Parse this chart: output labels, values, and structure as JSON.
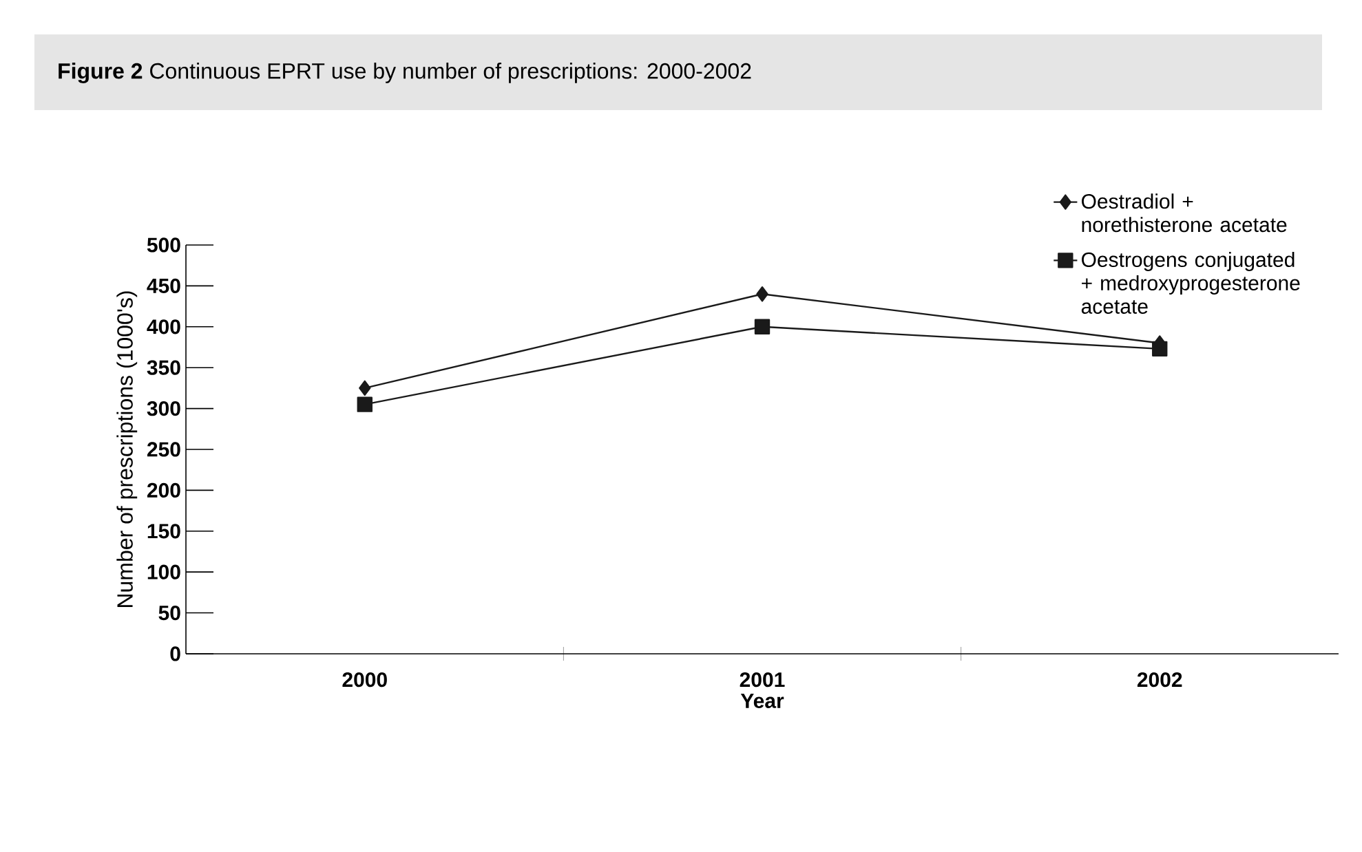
{
  "chart_data": {
    "type": "line",
    "title": "**Figure 2** Continuous EPRT use by number of prescriptions: 2000-2002",
    "xlabel": "Year",
    "ylabel": "Number of prescriptions (1000's)",
    "categories": [
      "2000",
      "2001",
      "2002"
    ],
    "series": [
      {
        "name": "Oestradiol + norethisterone acetate",
        "color": "#1a1a1a",
        "marker": "diamond",
        "values": [
          325,
          440,
          380
        ]
      },
      {
        "name": "Oestrogens conjugated + medroxyprogesterone acetate",
        "color": "#1a1a1a",
        "marker": "square",
        "values": [
          305,
          400,
          373
        ]
      }
    ],
    "ylim": [
      0,
      500
    ],
    "yticks": [
      0,
      50,
      100,
      150,
      200,
      250,
      300,
      350,
      400,
      450,
      500
    ],
    "legend": "top right",
    "grid": false,
    "line_style": "solid"
  }
}
